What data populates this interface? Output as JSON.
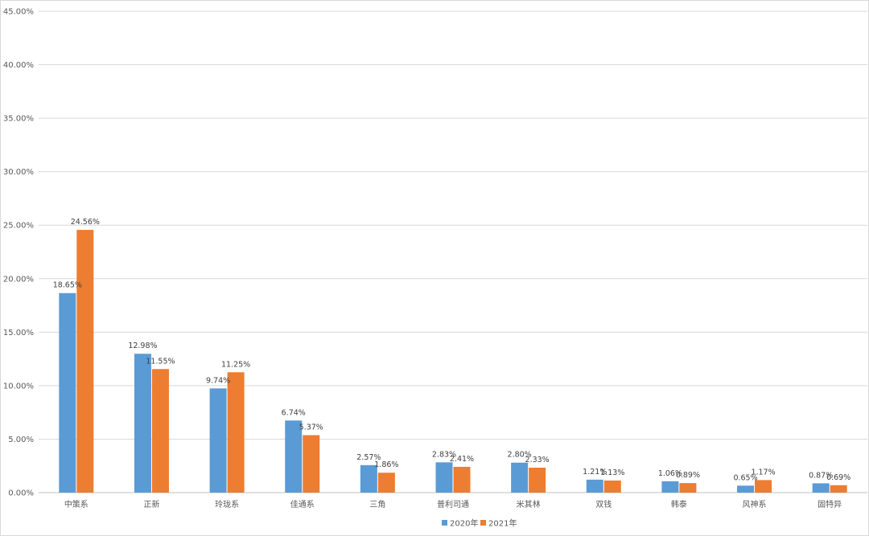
{
  "chart_data": {
    "type": "bar",
    "title": "",
    "xlabel": "",
    "ylabel": "",
    "ylim": [
      0,
      45
    ],
    "yticks": [
      "0.00%",
      "5.00%",
      "10.00%",
      "15.00%",
      "20.00%",
      "25.00%",
      "30.00%",
      "35.00%",
      "40.00%",
      "45.00%"
    ],
    "grid": true,
    "legend_position": "bottom",
    "categories": [
      "中策系",
      "正新",
      "玲珑系",
      "佳通系",
      "三角",
      "普利司通",
      "米其林",
      "双钱",
      "韩泰",
      "风神系",
      "固特异"
    ],
    "series": [
      {
        "name": "2020年",
        "color": "#5b9bd5",
        "values": [
          18.65,
          12.98,
          9.74,
          6.74,
          2.57,
          2.83,
          2.8,
          1.21,
          1.06,
          0.65,
          0.87
        ],
        "labels": [
          "18.65%",
          "12.98%",
          "9.74%",
          "6.74%",
          "2.57%",
          "2.83%",
          "2.80%",
          "1.21%",
          "1.06%",
          "0.65%",
          "0.87%"
        ]
      },
      {
        "name": "2021年",
        "color": "#ed7d31",
        "values": [
          24.56,
          11.55,
          11.25,
          5.37,
          1.86,
          2.41,
          2.33,
          1.13,
          0.89,
          1.17,
          0.69
        ],
        "labels": [
          "24.56%",
          "11.55%",
          "11.25%",
          "5.37%",
          "1.86%",
          "2.41%",
          "2.33%",
          "1.13%",
          "0.89%",
          "1.17%",
          "0.69%"
        ]
      }
    ]
  }
}
